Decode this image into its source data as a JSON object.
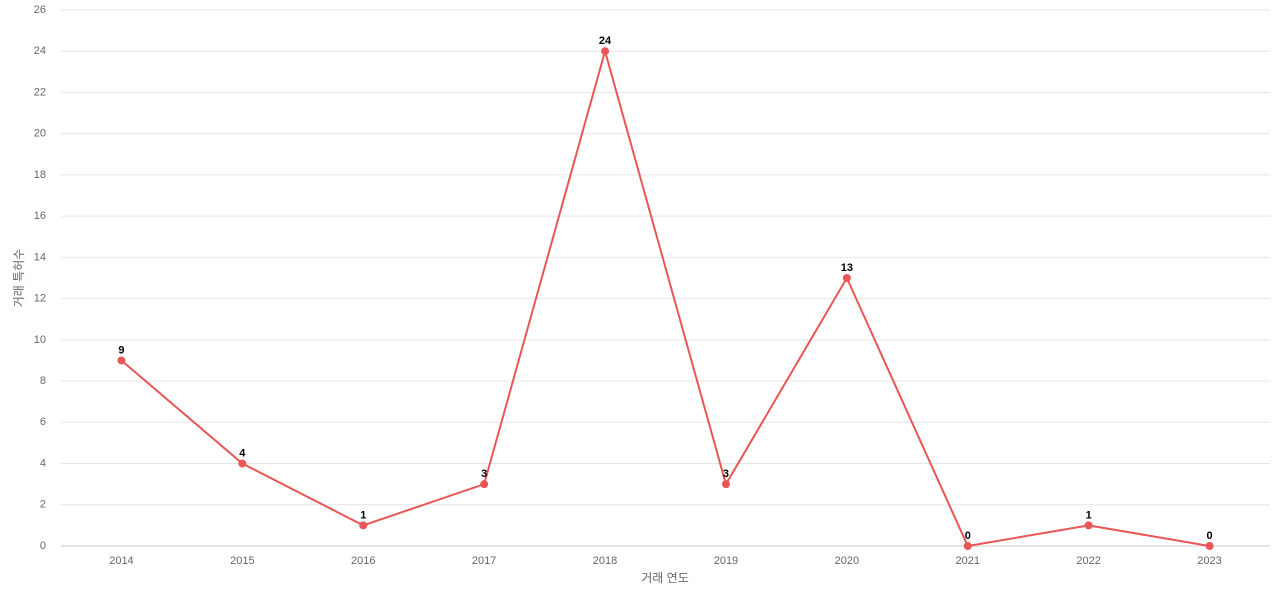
{
  "chart_data": {
    "type": "line",
    "x_label": "거래 연도",
    "y_label": "거래 특허수",
    "categories": [
      "2014",
      "2015",
      "2016",
      "2017",
      "2018",
      "2019",
      "2020",
      "2021",
      "2022",
      "2023"
    ],
    "series": [
      {
        "name": "거래 특허수",
        "color": "#e85656",
        "values": [
          9,
          4,
          1,
          3,
          24,
          3,
          13,
          0,
          1,
          0
        ]
      }
    ],
    "ylim": [
      0,
      26
    ],
    "yticks": [
      0,
      2,
      4,
      6,
      8,
      10,
      12,
      14,
      16,
      18,
      20,
      22,
      24,
      26
    ],
    "grid": true,
    "data_labels": true
  }
}
